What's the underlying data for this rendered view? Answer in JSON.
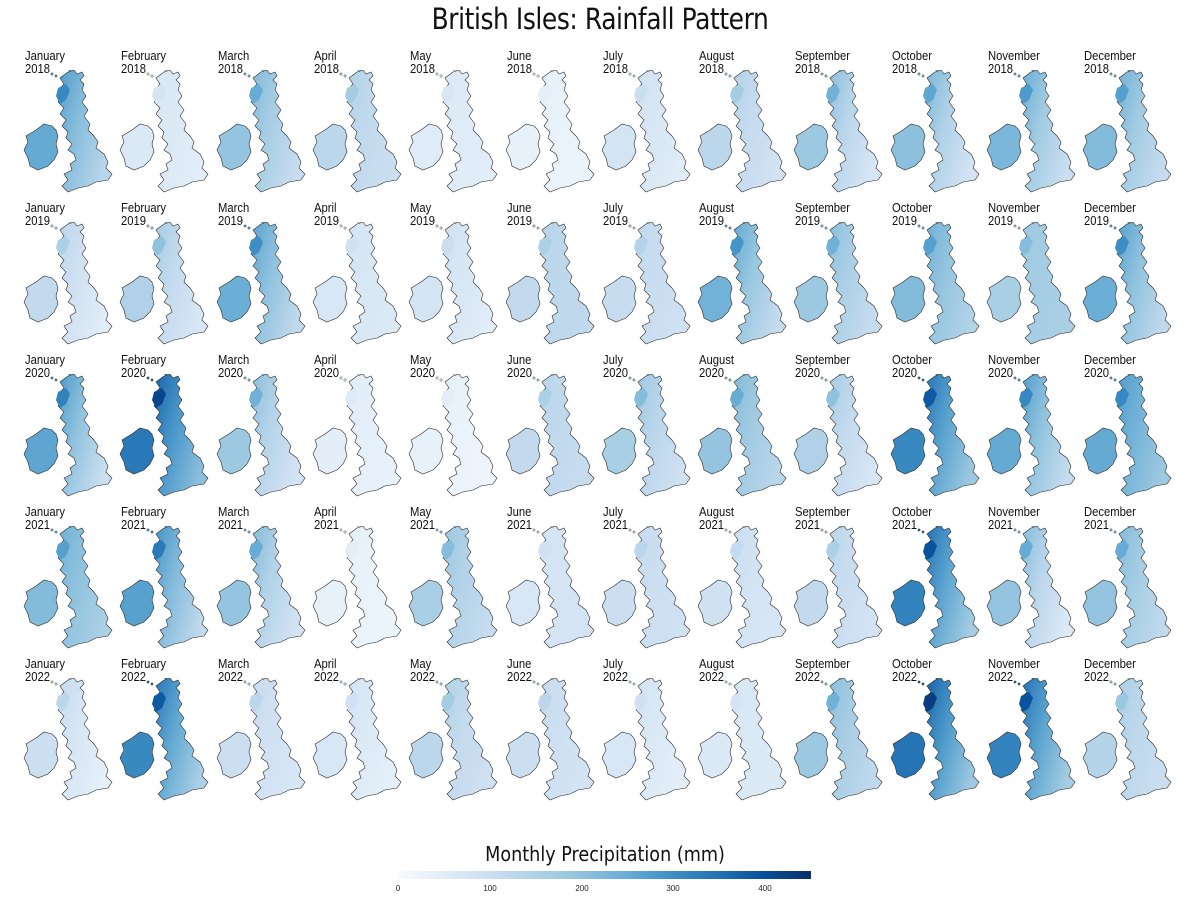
{
  "title": "British Isles: Rainfall Pattern",
  "legend": {
    "title": "Monthly Precipitation (mm)",
    "ticks": [
      "0",
      "100",
      "200",
      "300",
      "400"
    ],
    "tick_values": [
      0,
      100,
      200,
      300,
      400
    ],
    "range": [
      0,
      450
    ],
    "colormap": [
      "#f7fbff",
      "#deebf7",
      "#c6dbef",
      "#9ecae1",
      "#6baed6",
      "#4292c6",
      "#2171b5",
      "#08519c",
      "#08306b"
    ]
  },
  "rows": [
    {
      "year": "2018",
      "panels": [
        {
          "month": "January",
          "year": "2018",
          "w": 260,
          "e": 130
        },
        {
          "month": "February",
          "year": "2018",
          "w": 70,
          "e": 50
        },
        {
          "month": "March",
          "year": "2018",
          "w": 200,
          "e": 110
        },
        {
          "month": "April",
          "year": "2018",
          "w": 140,
          "e": 100
        },
        {
          "month": "May",
          "year": "2018",
          "w": 60,
          "e": 50
        },
        {
          "month": "June",
          "year": "2018",
          "w": 40,
          "e": 25
        },
        {
          "month": "July",
          "year": "2018",
          "w": 90,
          "e": 50
        },
        {
          "month": "August",
          "year": "2018",
          "w": 140,
          "e": 85
        },
        {
          "month": "September",
          "year": "2018",
          "w": 190,
          "e": 70
        },
        {
          "month": "October",
          "year": "2018",
          "w": 210,
          "e": 80
        },
        {
          "month": "November",
          "year": "2018",
          "w": 230,
          "e": 100
        },
        {
          "month": "December",
          "year": "2018",
          "w": 220,
          "e": 110
        }
      ]
    },
    {
      "year": "2019",
      "panels": [
        {
          "month": "January",
          "year": "2019",
          "w": 130,
          "e": 50
        },
        {
          "month": "February",
          "year": "2019",
          "w": 160,
          "e": 70
        },
        {
          "month": "March",
          "year": "2019",
          "w": 250,
          "e": 120
        },
        {
          "month": "April",
          "year": "2019",
          "w": 80,
          "e": 60
        },
        {
          "month": "May",
          "year": "2019",
          "w": 90,
          "e": 50
        },
        {
          "month": "June",
          "year": "2019",
          "w": 130,
          "e": 120
        },
        {
          "month": "July",
          "year": "2019",
          "w": 120,
          "e": 90
        },
        {
          "month": "August",
          "year": "2019",
          "w": 240,
          "e": 110
        },
        {
          "month": "September",
          "year": "2019",
          "w": 190,
          "e": 110
        },
        {
          "month": "October",
          "year": "2019",
          "w": 220,
          "e": 140
        },
        {
          "month": "November",
          "year": "2019",
          "w": 170,
          "e": 150
        },
        {
          "month": "December",
          "year": "2019",
          "w": 250,
          "e": 120
        }
      ]
    },
    {
      "year": "2020",
      "panels": [
        {
          "month": "January",
          "year": "2020",
          "w": 270,
          "e": 100
        },
        {
          "month": "February",
          "year": "2020",
          "w": 360,
          "e": 190
        },
        {
          "month": "March",
          "year": "2020",
          "w": 190,
          "e": 80
        },
        {
          "month": "April",
          "year": "2020",
          "w": 50,
          "e": 35
        },
        {
          "month": "May",
          "year": "2020",
          "w": 40,
          "e": 20
        },
        {
          "month": "June",
          "year": "2020",
          "w": 130,
          "e": 110
        },
        {
          "month": "July",
          "year": "2020",
          "w": 170,
          "e": 90
        },
        {
          "month": "August",
          "year": "2020",
          "w": 200,
          "e": 130
        },
        {
          "month": "September",
          "year": "2020",
          "w": 160,
          "e": 70
        },
        {
          "month": "October",
          "year": "2020",
          "w": 330,
          "e": 170
        },
        {
          "month": "November",
          "year": "2020",
          "w": 260,
          "e": 110
        },
        {
          "month": "December",
          "year": "2020",
          "w": 260,
          "e": 170
        }
      ]
    },
    {
      "year": "2021",
      "panels": [
        {
          "month": "January",
          "year": "2021",
          "w": 220,
          "e": 150
        },
        {
          "month": "February",
          "year": "2021",
          "w": 280,
          "e": 120
        },
        {
          "month": "March",
          "year": "2021",
          "w": 200,
          "e": 80
        },
        {
          "month": "April",
          "year": "2021",
          "w": 40,
          "e": 25
        },
        {
          "month": "May",
          "year": "2021",
          "w": 170,
          "e": 110
        },
        {
          "month": "June",
          "year": "2021",
          "w": 80,
          "e": 80
        },
        {
          "month": "July",
          "year": "2021",
          "w": 110,
          "e": 90
        },
        {
          "month": "August",
          "year": "2021",
          "w": 100,
          "e": 70
        },
        {
          "month": "September",
          "year": "2021",
          "w": 130,
          "e": 80
        },
        {
          "month": "October",
          "year": "2021",
          "w": 340,
          "e": 160
        },
        {
          "month": "November",
          "year": "2021",
          "w": 200,
          "e": 60
        },
        {
          "month": "December",
          "year": "2021",
          "w": 200,
          "e": 120
        }
      ]
    },
    {
      "year": "2022",
      "panels": [
        {
          "month": "January",
          "year": "2022",
          "w": 110,
          "e": 40
        },
        {
          "month": "February",
          "year": "2022",
          "w": 330,
          "e": 150
        },
        {
          "month": "March",
          "year": "2022",
          "w": 110,
          "e": 70
        },
        {
          "month": "April",
          "year": "2022",
          "w": 80,
          "e": 40
        },
        {
          "month": "May",
          "year": "2022",
          "w": 140,
          "e": 90
        },
        {
          "month": "June",
          "year": "2022",
          "w": 110,
          "e": 80
        },
        {
          "month": "July",
          "year": "2022",
          "w": 80,
          "e": 45
        },
        {
          "month": "August",
          "year": "2022",
          "w": 70,
          "e": 60
        },
        {
          "month": "September",
          "year": "2022",
          "w": 190,
          "e": 120
        },
        {
          "month": "October",
          "year": "2022",
          "w": 370,
          "e": 170
        },
        {
          "month": "November",
          "year": "2022",
          "w": 340,
          "e": 160
        },
        {
          "month": "December",
          "year": "2022",
          "w": 150,
          "e": 100
        }
      ]
    }
  ]
}
